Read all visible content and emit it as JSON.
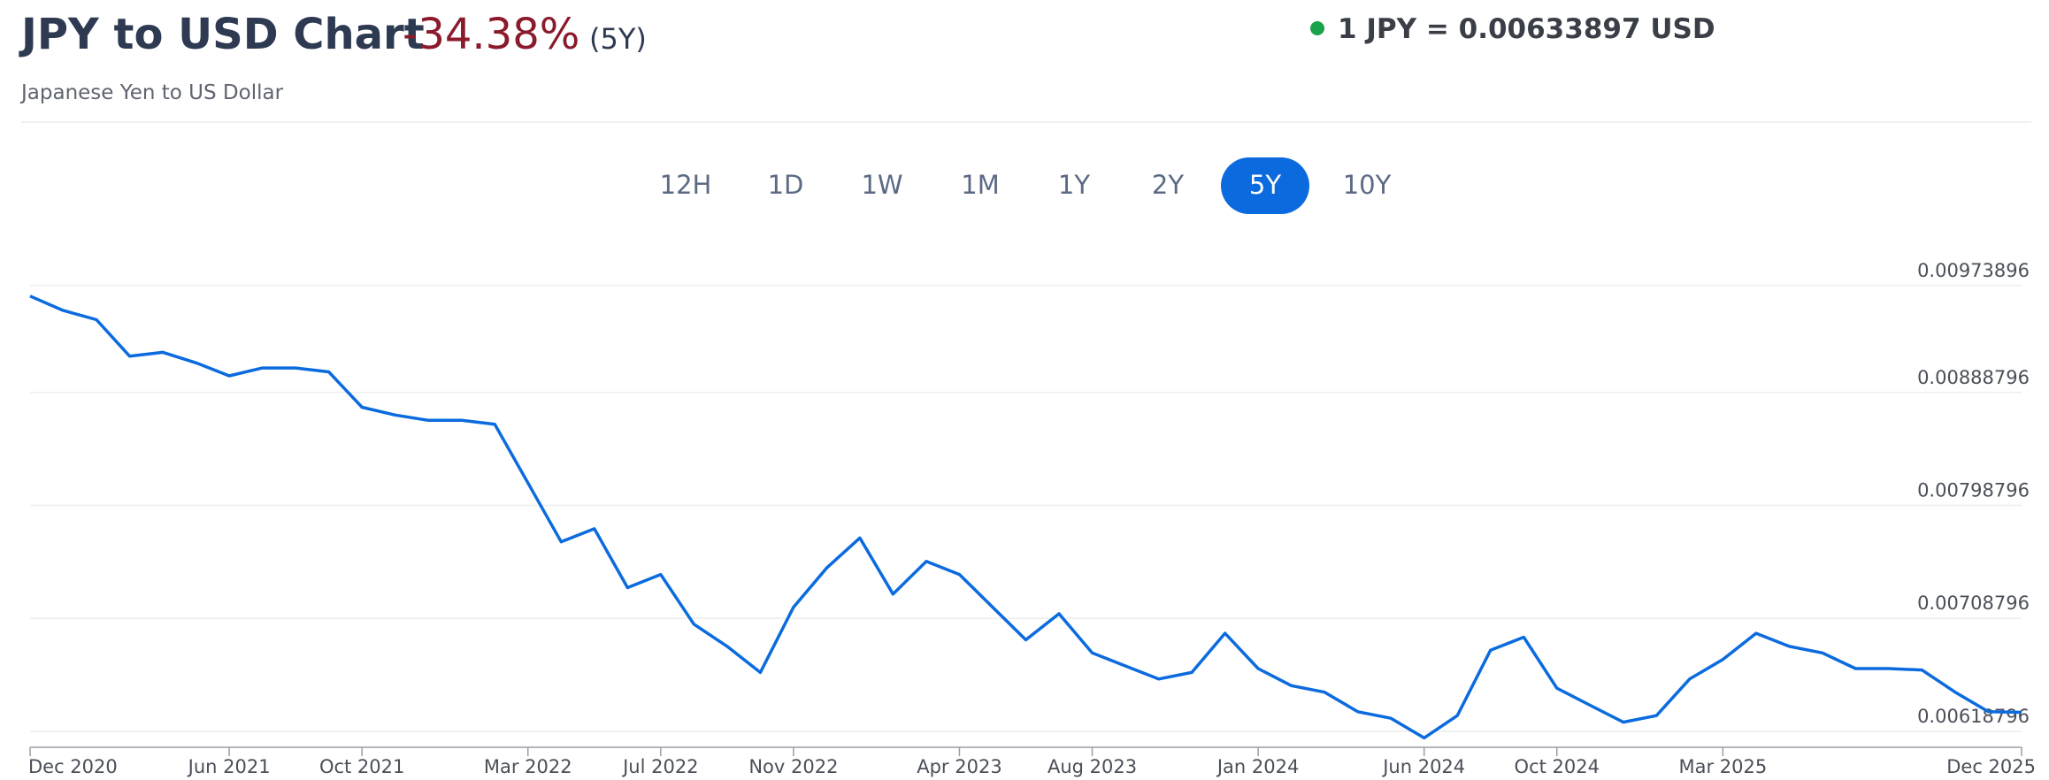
{
  "header": {
    "title": "JPY to USD Chart",
    "change": "-34.38%",
    "period": "(5Y)",
    "subtitle": "Japanese Yen to US Dollar",
    "rate": "1 JPY = 0.00633897 USD"
  },
  "ranges": {
    "options": [
      "12H",
      "1D",
      "1W",
      "1M",
      "1Y",
      "2Y",
      "5Y",
      "10Y"
    ],
    "active": 6
  },
  "chart_data": {
    "type": "line",
    "categories": [
      "Dec 2020",
      null,
      null,
      null,
      null,
      null,
      "Jun 2021",
      null,
      null,
      null,
      "Oct 2021",
      null,
      null,
      null,
      null,
      "Mar 2022",
      null,
      null,
      null,
      "Jul 2022",
      null,
      null,
      null,
      "Nov 2022",
      null,
      null,
      null,
      null,
      "Apr 2023",
      null,
      null,
      null,
      "Aug 2023",
      null,
      null,
      null,
      null,
      "Jan 2024",
      null,
      null,
      null,
      null,
      "Jun 2024",
      null,
      null,
      null,
      "Oct 2024",
      null,
      null,
      null,
      null,
      "Mar 2025",
      null,
      null,
      null,
      null,
      null,
      null,
      null,
      null,
      "Dec 2025"
    ],
    "series": [
      {
        "name": "JPY to USD",
        "color": "#0b6bde",
        "values": [
          0.009656,
          0.009541,
          0.009468,
          0.009177,
          0.009208,
          0.009124,
          0.00902,
          0.009083,
          0.009083,
          0.009052,
          0.00877,
          0.008708,
          0.008666,
          0.008666,
          0.008635,
          0.008166,
          0.007698,
          0.007802,
          0.007333,
          0.007438,
          0.007042,
          0.006865,
          0.006657,
          0.007177,
          0.00749,
          0.007729,
          0.007281,
          0.007542,
          0.007438,
          0.007177,
          0.006917,
          0.007125,
          0.006813,
          0.006709,
          0.006605,
          0.006657,
          0.006969,
          0.006688,
          0.006552,
          0.0065,
          0.006344,
          0.006292,
          0.006136,
          0.006313,
          0.006834,
          0.006938,
          0.006532,
          0.006396,
          0.006261,
          0.006313,
          0.006605,
          0.006761,
          0.006969,
          0.006865,
          0.006813,
          0.006688,
          0.006688,
          0.006677,
          0.0065,
          0.006344,
          0.006339
        ]
      }
    ],
    "ylim": [
      0.006061,
      0.009901
    ],
    "yticks": [
      0.00618796,
      0.00708796,
      0.00798796,
      0.00888796,
      0.00973896
    ],
    "grid": true
  }
}
